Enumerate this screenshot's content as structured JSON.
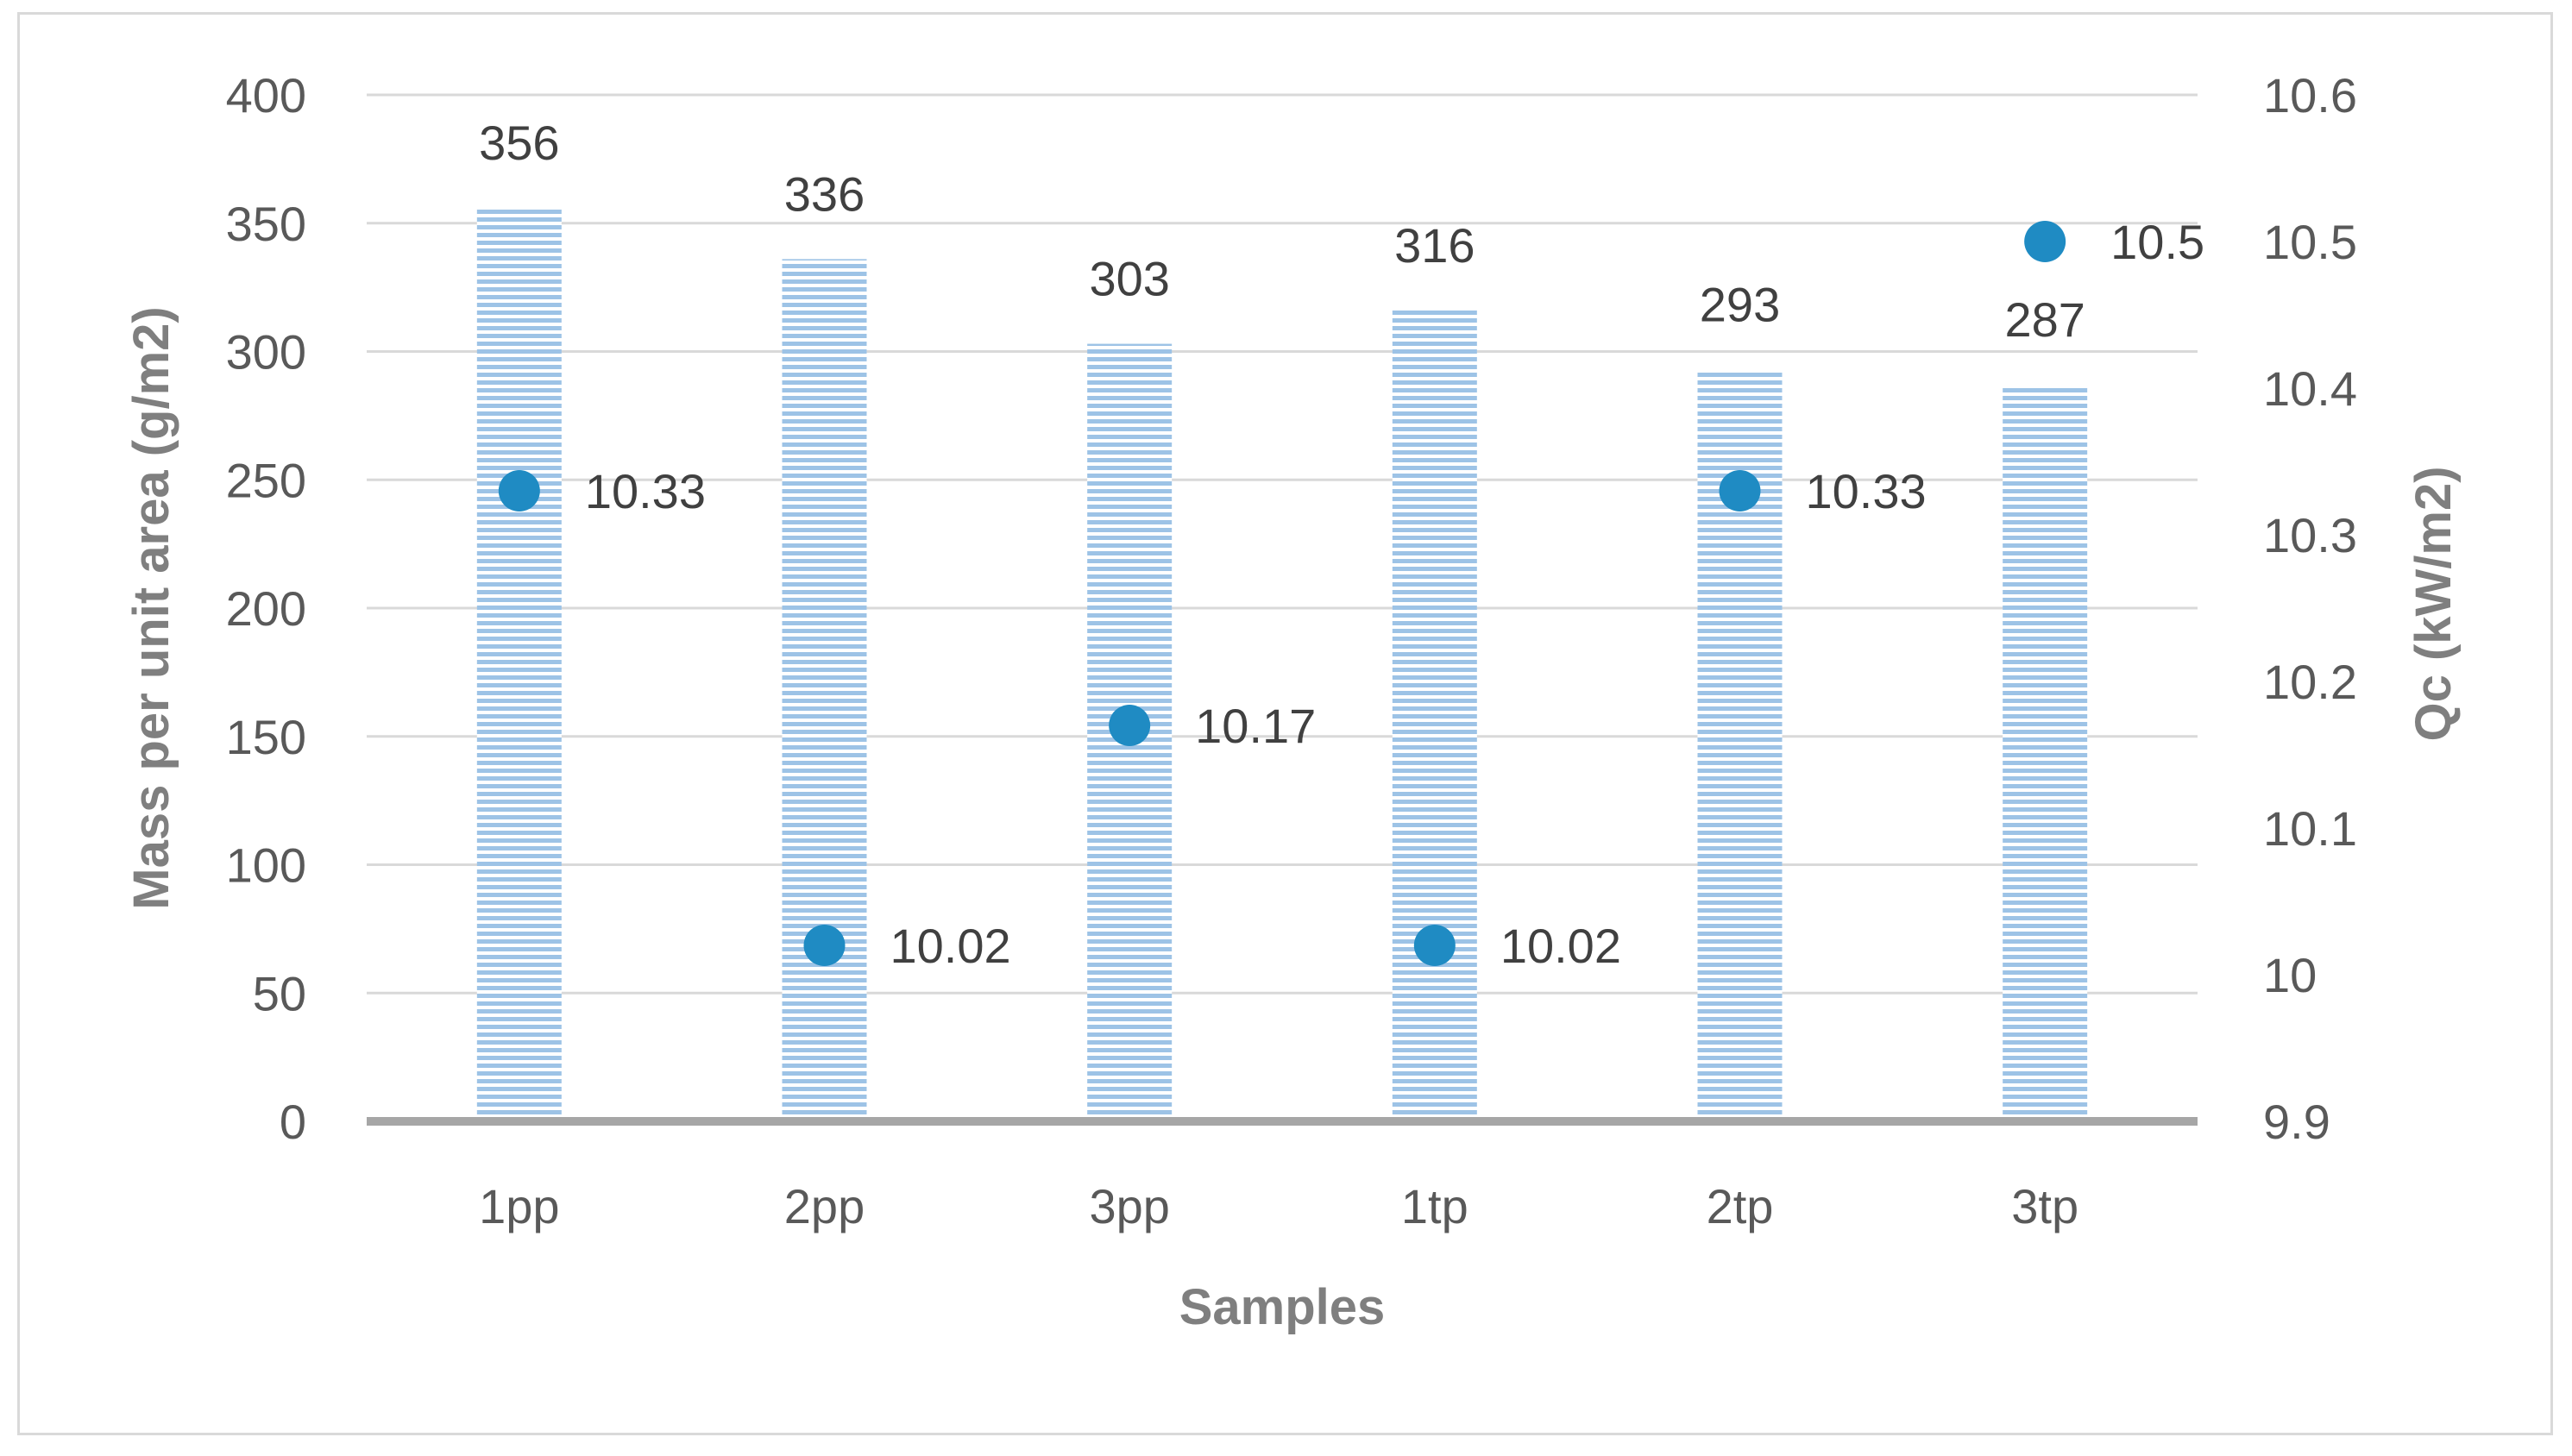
{
  "chart_data": {
    "type": "bar",
    "categories": [
      "1pp",
      "2pp",
      "3pp",
      "1tp",
      "2tp",
      "3tp"
    ],
    "series": [
      {
        "axis": "left",
        "type": "bar",
        "values": [
          356,
          336,
          303,
          316,
          293,
          287
        ],
        "data_labels": [
          "356",
          "336",
          "303",
          "316",
          "293",
          "287"
        ],
        "color": "#9dc3e6",
        "pattern": "horizontal-stripes"
      },
      {
        "axis": "right",
        "type": "scatter",
        "values": [
          10.33,
          10.02,
          10.17,
          10.02,
          10.33,
          10.5
        ],
        "data_labels": [
          "10.33",
          "10.02",
          "10.17",
          "10.02",
          "10.33",
          "10.5"
        ],
        "color": "#1f8bc3"
      }
    ],
    "title": "",
    "xlabel": "Samples",
    "ylabel": "Mass per unit area (g/m2)",
    "y2label": "Qc (kW/m2)",
    "ylim": [
      0,
      400
    ],
    "y_ticks": [
      "0",
      "50",
      "100",
      "150",
      "200",
      "250",
      "300",
      "350",
      "400"
    ],
    "y2lim": [
      9.9,
      10.6
    ],
    "y2_ticks": [
      "9.9",
      "10",
      "10.1",
      "10.2",
      "10.3",
      "10.4",
      "10.5",
      "10.6"
    ],
    "grid": true,
    "legend": "none",
    "colors": {
      "gridline": "#d9d9d9",
      "baseline": "#a6a6a6",
      "tick_text": "#595959",
      "axis_title": "#7f7f7f",
      "data_label": "#404040",
      "frame": "#d9d9d9"
    }
  }
}
